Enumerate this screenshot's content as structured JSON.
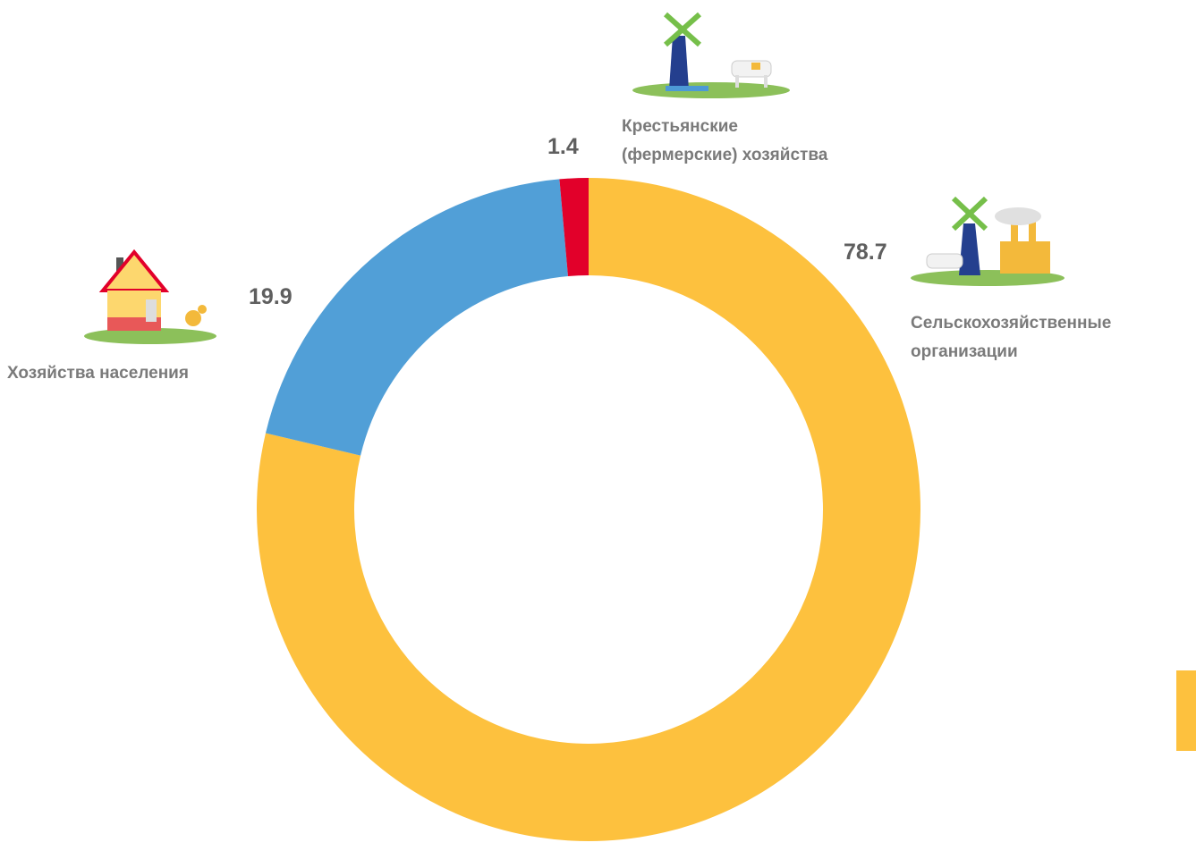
{
  "chart_data": {
    "type": "donut",
    "categories": [
      "Сельскохозяйственные\nорганизации",
      "Хозяйства населения",
      "Крестьянские\n(фермерские) хозяйства"
    ],
    "values": [
      78.7,
      19.9,
      1.4
    ],
    "colors": [
      "#fdc13e",
      "#519fd7",
      "#e2002a"
    ]
  }
}
